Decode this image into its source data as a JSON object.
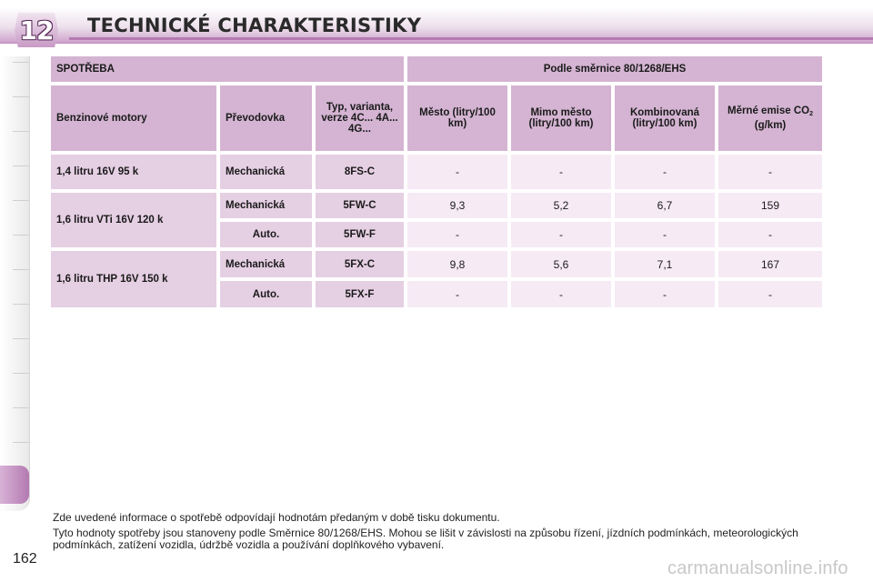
{
  "chapter": "12",
  "title": "TECHNICKÉ CHARAKTERISTIKY",
  "table": {
    "section_header": "SPOTŘEBA",
    "directive_header": "Podle směrnice 80/1268/EHS",
    "columns": {
      "engine": "Benzinové motory",
      "gearbox": "Převodovka",
      "type": "Typ, varianta, verze 4C... 4A... 4G...",
      "city": "Město (litry/100 km)",
      "extra_urban": "Mimo město (litry/100 km)",
      "combined": "Kombinovaná (litry/100 km)",
      "co2_main": "Měrné emise CO",
      "co2_sub": "2",
      "co2_unit": "(g/km)"
    },
    "rows": [
      {
        "engine": "1,4 litru 16V 95 k",
        "gearbox": "Mechanická",
        "type": "8FS-C",
        "city": "-",
        "extra": "-",
        "combined": "-",
        "co2": "-"
      },
      {
        "engine": "1,6 litru VTi 16V 120 k",
        "gearbox": "Mechanická",
        "type": "5FW-C",
        "city": "9,3",
        "extra": "5,2",
        "combined": "6,7",
        "co2": "159"
      },
      {
        "gearbox": "Auto.",
        "type": "5FW-F",
        "city": "-",
        "extra": "-",
        "combined": "-",
        "co2": "-"
      },
      {
        "engine": "1,6 litru THP 16V 150 k",
        "gearbox": "Mechanická",
        "type": "5FX-C",
        "city": "9,8",
        "extra": "5,6",
        "combined": "7,1",
        "co2": "167"
      },
      {
        "gearbox": "Auto.",
        "type": "5FX-F",
        "city": "-",
        "extra": "-",
        "combined": "-",
        "co2": "-"
      }
    ]
  },
  "notes": {
    "line1": "Zde uvedené informace o spotřebě odpovídají hodnotám předaným v době tisku dokumentu.",
    "line2": "Tyto hodnoty spotřeby jsou stanoveny podle Směrnice 80/1268/EHS. Mohou se lišit v závislosti na způsobu řízení, jízdních podmínkách, meteorologických podmínkách, zatížení vozidla, údržbě vozidla a používání doplňkového vybavení."
  },
  "page_number": "162",
  "watermark": "carmanualsonline.info"
}
